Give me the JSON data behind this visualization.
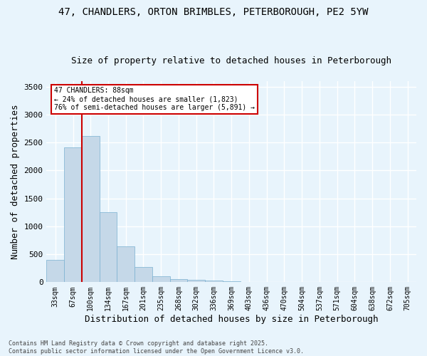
{
  "title1": "47, CHANDLERS, ORTON BRIMBLES, PETERBOROUGH, PE2 5YW",
  "title2": "Size of property relative to detached houses in Peterborough",
  "xlabel": "Distribution of detached houses by size in Peterborough",
  "ylabel": "Number of detached properties",
  "categories": [
    "33sqm",
    "67sqm",
    "100sqm",
    "134sqm",
    "167sqm",
    "201sqm",
    "235sqm",
    "268sqm",
    "302sqm",
    "336sqm",
    "369sqm",
    "403sqm",
    "436sqm",
    "470sqm",
    "504sqm",
    "537sqm",
    "571sqm",
    "604sqm",
    "638sqm",
    "672sqm",
    "705sqm"
  ],
  "bar_heights": [
    400,
    2420,
    2620,
    1250,
    640,
    270,
    105,
    60,
    45,
    25,
    18,
    10,
    5,
    3,
    2,
    1,
    1,
    0,
    0,
    0,
    0
  ],
  "bar_color": "#c5d8e8",
  "bar_edge_color": "#7ab0d0",
  "annotation_title": "47 CHANDLERS: 88sqm",
  "annotation_line1": "← 24% of detached houses are smaller (1,823)",
  "annotation_line2": "76% of semi-detached houses are larger (5,891) →",
  "annotation_box_color": "#ffffff",
  "annotation_box_edge": "#cc0000",
  "ylim": [
    0,
    3600
  ],
  "yticks": [
    0,
    500,
    1000,
    1500,
    2000,
    2500,
    3000,
    3500
  ],
  "vline_color": "#cc0000",
  "vline_x": 1.5,
  "footer1": "Contains HM Land Registry data © Crown copyright and database right 2025.",
  "footer2": "Contains public sector information licensed under the Open Government Licence v3.0.",
  "bg_color": "#e8f4fc",
  "plot_bg_color": "#e8f4fc",
  "grid_color": "#ffffff",
  "title_fontsize": 10,
  "subtitle_fontsize": 9,
  "axis_fontsize": 8,
  "tick_fontsize": 7,
  "footer_fontsize": 6
}
